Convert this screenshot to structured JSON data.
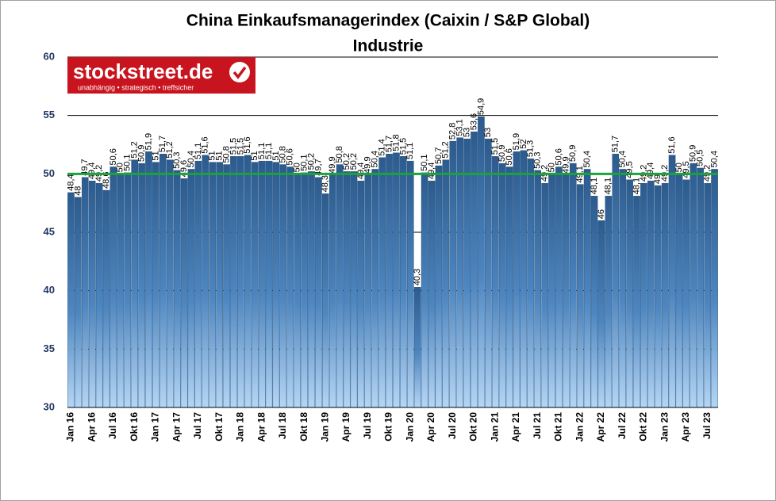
{
  "chart_data": {
    "type": "bar",
    "title": "China Einkaufsmanagerindex (Caixin / S&P Global)",
    "subtitle": "Industrie",
    "logo": {
      "name": "stockstreet.de",
      "tagline": "unabhängig • strategisch • treffsicher"
    },
    "categories": [
      "Jan 16",
      null,
      null,
      "Apr 16",
      null,
      null,
      "Jul 16",
      null,
      null,
      "Okt 16",
      null,
      null,
      "Jan 17",
      null,
      null,
      "Apr 17",
      null,
      null,
      "Jul 17",
      null,
      null,
      "Okt 17",
      null,
      null,
      "Jan 18",
      null,
      null,
      "Apr 18",
      null,
      null,
      "Jul 18",
      null,
      null,
      "Okt 18",
      null,
      null,
      "Jan 19",
      null,
      null,
      "Apr 19",
      null,
      null,
      "Jul 19",
      null,
      null,
      "Okt 19",
      null,
      null,
      "Jan 20",
      null,
      null,
      "Apr 20",
      null,
      null,
      "Jul 20",
      null,
      null,
      "Okt 20",
      null,
      null,
      "Jan 21",
      null,
      null,
      "Apr 21",
      null,
      null,
      "Jul 21",
      null,
      null,
      "Okt 21",
      null,
      null,
      "Jan 22",
      null,
      null,
      "Apr 22",
      null,
      null,
      "Jul 22",
      null,
      null,
      "Okt 22",
      null,
      null,
      "Jan 23",
      null,
      null,
      "Apr 23",
      null,
      null,
      "Jul 23",
      null
    ],
    "values": [
      48.4,
      48.0,
      49.7,
      49.4,
      49.2,
      48.6,
      50.6,
      50.0,
      50.1,
      51.2,
      50.9,
      51.9,
      51.0,
      51.7,
      51.2,
      50.3,
      49.6,
      50.4,
      51.1,
      51.6,
      51.0,
      51.0,
      50.8,
      51.5,
      51.5,
      51.6,
      51.0,
      51.1,
      51.1,
      51.0,
      50.8,
      50.6,
      50.0,
      50.1,
      50.2,
      49.7,
      48.3,
      49.9,
      50.8,
      50.2,
      50.2,
      49.4,
      49.9,
      50.4,
      51.4,
      51.7,
      51.8,
      51.5,
      51.1,
      40.3,
      50.1,
      49.4,
      50.7,
      51.2,
      52.8,
      53.1,
      53.0,
      53.6,
      54.9,
      53.0,
      51.5,
      50.9,
      50.6,
      51.9,
      52.0,
      51.3,
      50.3,
      49.2,
      50.0,
      50.6,
      49.9,
      50.9,
      49.1,
      50.4,
      48.1,
      46.0,
      48.1,
      51.7,
      50.4,
      49.5,
      48.1,
      49.2,
      49.4,
      49.0,
      49.2,
      51.6,
      50.0,
      49.5,
      50.9,
      50.5,
      49.2,
      50.4
    ],
    "value_labels": [
      "48,4",
      "48",
      "49,7",
      "49,4",
      "49,2",
      "48,6",
      "50,6",
      "50",
      "50,1",
      "51,2",
      "50,9",
      "51,9",
      "51",
      "51,7",
      "51,2",
      "50,3",
      "49,6",
      "50,4",
      "51,1",
      "51,6",
      "51",
      "51",
      "50,8",
      "51,5",
      "51,5",
      "51,6",
      "51",
      "51,1",
      "51,1",
      "51",
      "50,8",
      "50,6",
      "50",
      "50,1",
      "50,2",
      "49,7",
      "48,3",
      "49,9",
      "50,8",
      "50,2",
      "50,2",
      "49,4",
      "49,9",
      "50,4",
      "51,4",
      "51,7",
      "51,8",
      "51,5",
      "51,1",
      "40,3",
      "50,1",
      "49,4",
      "50,7",
      "51,2",
      "52,8",
      "53,1",
      "53",
      "53,6",
      "54,9",
      "53",
      "51,5",
      "50,9",
      "50,6",
      "51,9",
      "52",
      "51,3",
      "50,3",
      "49,2",
      "50",
      "50,6",
      "49,9",
      "50,9",
      "49,1",
      "50,4",
      "48,1",
      "46",
      "48,1",
      "51,7",
      "50,4",
      "49,5",
      "48,1",
      "49,2",
      "49,4",
      "49",
      "49,2",
      "51,6",
      "50",
      "49,5",
      "50,9",
      "50,5",
      "49,2",
      "50,4"
    ],
    "reference_line": 50,
    "reference_color": "#1aa33a",
    "ylim": [
      30,
      60
    ],
    "yticks": [
      30,
      35,
      40,
      45,
      50,
      55,
      60
    ],
    "grid": true
  }
}
